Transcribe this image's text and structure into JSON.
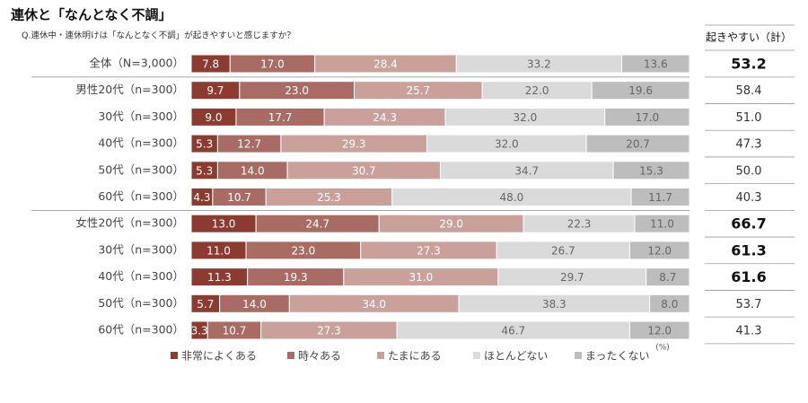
{
  "chart_data": {
    "type": "bar",
    "orientation": "horizontal",
    "stacked": true,
    "title": "連休と「なんとなく不調」",
    "subtitle": "Q.連休中・連休明けは「なんとなく不調」が起きやすいと感じますか？",
    "unit_note": "(%)",
    "xlim": [
      0,
      100
    ],
    "categories": [
      "全体（N=3,000）",
      "男性20代（n=300）",
      "30代（n=300）",
      "40代（n=300）",
      "50代（n=300）",
      "60代（n=300）",
      "女性20代（n=300）",
      "30代（n=300）",
      "40代（n=300）",
      "50代（n=300）",
      "60代（n=300）"
    ],
    "series": [
      {
        "name": "非常によくある",
        "color": "#8c3b30",
        "values": [
          7.8,
          9.7,
          9.0,
          5.3,
          5.3,
          4.3,
          13.0,
          11.0,
          11.3,
          5.7,
          3.3
        ],
        "value_labels": [
          "7.8",
          "9.7",
          "9.0",
          "5.3",
          "5.3",
          "4.3",
          "13.0",
          "11.0",
          "11.3",
          "5.7",
          "3.3"
        ]
      },
      {
        "name": "時々ある",
        "color": "#a86c64",
        "values": [
          17.0,
          23.0,
          17.7,
          12.7,
          14.0,
          10.7,
          24.7,
          23.0,
          19.3,
          14.0,
          10.7
        ],
        "value_labels": [
          "17.0",
          "23.0",
          "17.7",
          "12.7",
          "14.0",
          "10.7",
          "24.7",
          "23.0",
          "19.3",
          "14.0",
          "10.7"
        ]
      },
      {
        "name": "たまにある",
        "color": "#c9a09a",
        "values": [
          28.4,
          25.7,
          24.3,
          29.3,
          30.7,
          25.3,
          29.0,
          27.3,
          31.0,
          34.0,
          27.3
        ],
        "value_labels": [
          "28.4",
          "25.7",
          "24.3",
          "29.3",
          "30.7",
          "25.3",
          "29.0",
          "27.3",
          "31.0",
          "34.0",
          "27.3"
        ]
      },
      {
        "name": "ほとんどない",
        "color": "#dadada",
        "values": [
          33.2,
          22.0,
          32.0,
          32.0,
          34.7,
          48.0,
          22.3,
          26.7,
          29.7,
          38.3,
          46.7
        ],
        "value_labels": [
          "33.2",
          "22.0",
          "32.0",
          "32.0",
          "34.7",
          "48.0",
          "22.3",
          "26.7",
          "29.7",
          "38.3",
          "46.7"
        ]
      },
      {
        "name": "まったくない",
        "color": "#bdbdbd",
        "values": [
          13.6,
          19.6,
          17.0,
          20.7,
          15.3,
          11.7,
          11.0,
          12.0,
          8.7,
          8.0,
          12.0
        ],
        "value_labels": [
          "13.6",
          "19.6",
          "17.0",
          "20.7",
          "15.3",
          "11.7",
          "11.0",
          "12.0",
          "8.7",
          "8.0",
          "12.0"
        ]
      }
    ],
    "side_table": {
      "header": "起きやすい（計）",
      "values": [
        53.2,
        58.4,
        51.0,
        47.3,
        50.0,
        40.3,
        66.7,
        61.3,
        61.6,
        53.7,
        41.3
      ],
      "value_labels": [
        "53.2",
        "58.4",
        "51.0",
        "47.3",
        "50.0",
        "40.3",
        "66.7",
        "61.3",
        "61.6",
        "53.7",
        "41.3"
      ],
      "bold": [
        true,
        false,
        false,
        false,
        false,
        false,
        true,
        true,
        true,
        false,
        false
      ]
    }
  }
}
